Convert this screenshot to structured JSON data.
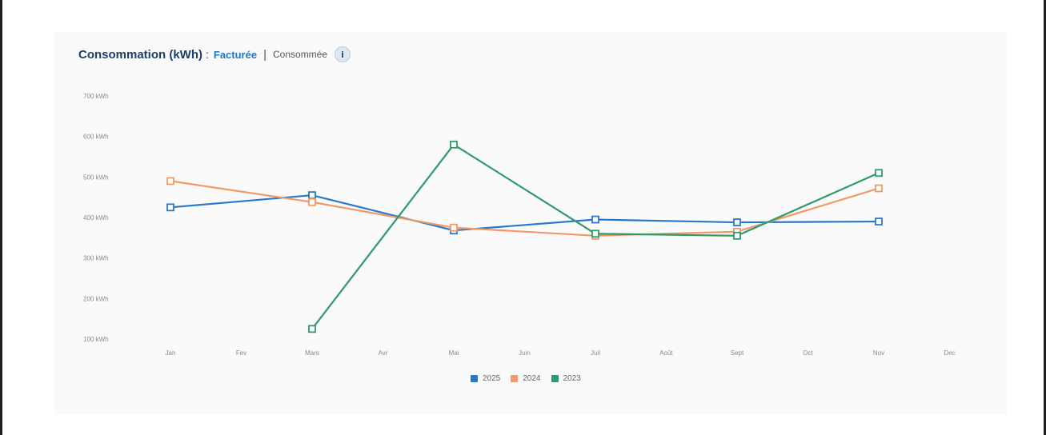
{
  "header": {
    "title": "Consommation (kWh)",
    "separator": ":",
    "tab_active": "Facturée",
    "divider": "|",
    "tab_inactive": "Consommée",
    "info_glyph": "i"
  },
  "chart_data": {
    "type": "line",
    "categories": [
      "Jan",
      "Fev",
      "Mars",
      "Avr",
      "Mai",
      "Juin",
      "Juil",
      "Août",
      "Sept",
      "Oct",
      "Nov",
      "Dec"
    ],
    "yticks": [
      "100 kWh",
      "200 kWh",
      "300 kWh",
      "400 kWh",
      "500 kWh",
      "600 kWh",
      "700 kWh"
    ],
    "ylim": [
      100,
      700
    ],
    "grid": false,
    "legend_position": "bottom-center",
    "series": [
      {
        "name": "2025",
        "color": "#2a78c8",
        "values": [
          425,
          null,
          455,
          null,
          368,
          null,
          395,
          null,
          388,
          null,
          390,
          null
        ]
      },
      {
        "name": "2024",
        "color": "#f09a68",
        "values": [
          490,
          null,
          438,
          null,
          375,
          null,
          355,
          null,
          365,
          null,
          472,
          null
        ]
      },
      {
        "name": "2023",
        "color": "#2f9a6a",
        "values": [
          null,
          null,
          125,
          null,
          580,
          null,
          360,
          null,
          355,
          null,
          510,
          null
        ]
      }
    ]
  }
}
